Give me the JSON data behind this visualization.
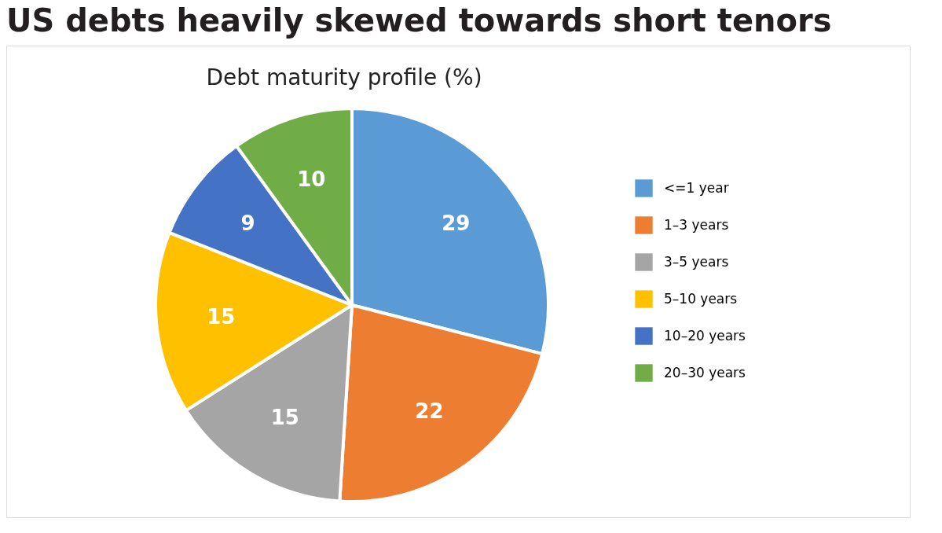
{
  "chart_data": {
    "type": "pie",
    "title": "US debts heavily skewed towards short tenors",
    "subtitle": "Debt maturity profile (%)",
    "categories": [
      "<=1 year",
      "1–3 years",
      "3–5 years",
      "5–10 years",
      "10–20 years",
      "20–30 years"
    ],
    "values": [
      29,
      22,
      15,
      15,
      9,
      10
    ],
    "colors": [
      "#5b9bd5",
      "#ed7d31",
      "#a5a5a5",
      "#ffc000",
      "#4472c4",
      "#70ad47"
    ],
    "data_labels": true,
    "legend": "right"
  }
}
